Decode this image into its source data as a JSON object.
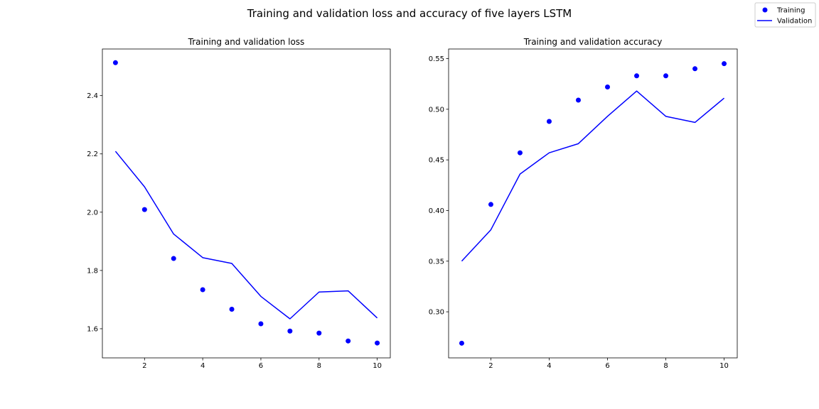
{
  "figure": {
    "suptitle": "Training and validation loss and accuracy of five layers LSTM"
  },
  "legend": {
    "placement": "top-right",
    "entries": [
      {
        "label": "Training",
        "marker": "dot",
        "color": "#0000ff"
      },
      {
        "label": "Validation",
        "marker": "line",
        "color": "#0000ff"
      }
    ]
  },
  "colors": {
    "series": "#0000ff",
    "axes": "#000000",
    "background": "#ffffff"
  },
  "chart_data": [
    {
      "type": "line",
      "title": "Training and validation loss",
      "xlabel": "",
      "ylabel": "",
      "x": [
        1,
        2,
        3,
        4,
        5,
        6,
        7,
        8,
        9,
        10
      ],
      "xlim": [
        0.55,
        10.45
      ],
      "ylim": [
        1.5,
        2.56
      ],
      "xticks": [
        2,
        4,
        6,
        8,
        10
      ],
      "yticks": [
        1.6,
        1.8,
        2.0,
        2.2,
        2.4
      ],
      "yticklabels": [
        "1.6",
        "1.8",
        "2.0",
        "2.2",
        "2.4"
      ],
      "grid": false,
      "series": [
        {
          "name": "Training",
          "style": "dots",
          "values": [
            2.513,
            2.009,
            1.841,
            1.734,
            1.667,
            1.617,
            1.592,
            1.585,
            1.558,
            1.551
          ]
        },
        {
          "name": "Validation",
          "style": "line",
          "values": [
            2.209,
            2.087,
            1.925,
            1.844,
            1.824,
            1.711,
            1.634,
            1.726,
            1.73,
            1.637
          ]
        }
      ]
    },
    {
      "type": "line",
      "title": "Training and validation accuracy",
      "xlabel": "",
      "ylabel": "",
      "x": [
        1,
        2,
        3,
        4,
        5,
        6,
        7,
        8,
        9,
        10
      ],
      "xlim": [
        0.55,
        10.45
      ],
      "ylim": [
        0.2545,
        0.5595
      ],
      "xticks": [
        2,
        4,
        6,
        8,
        10
      ],
      "yticks": [
        0.3,
        0.35,
        0.4,
        0.45,
        0.5,
        0.55
      ],
      "yticklabels": [
        "0.30",
        "0.35",
        "0.40",
        "0.45",
        "0.50",
        "0.55"
      ],
      "grid": false,
      "series": [
        {
          "name": "Training",
          "style": "dots",
          "values": [
            0.269,
            0.406,
            0.457,
            0.488,
            0.509,
            0.522,
            0.533,
            0.533,
            0.54,
            0.545
          ]
        },
        {
          "name": "Validation",
          "style": "line",
          "values": [
            0.35,
            0.381,
            0.436,
            0.457,
            0.466,
            0.493,
            0.518,
            0.493,
            0.487,
            0.511
          ]
        }
      ]
    }
  ]
}
